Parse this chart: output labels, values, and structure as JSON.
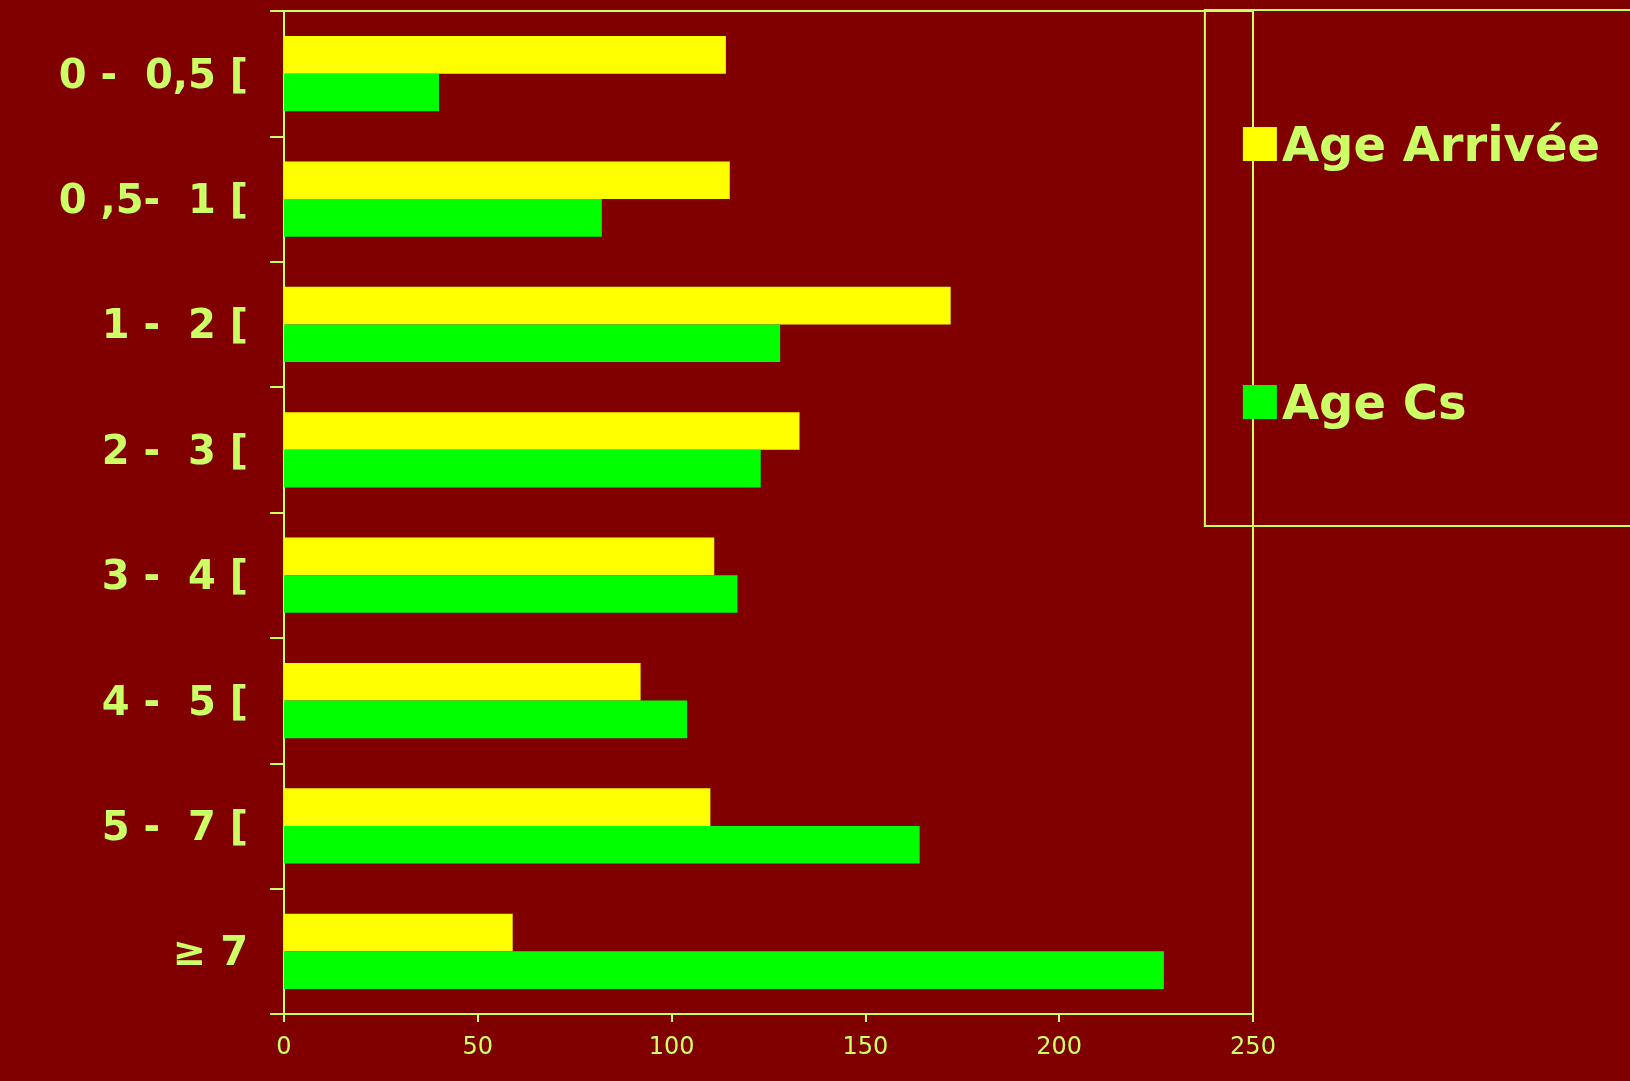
{
  "chart_data": {
    "type": "bar",
    "orientation": "horizontal",
    "categories": [
      "0 -  0,5 [",
      "0 ,5-  1 [",
      "1 -  2 [",
      "2 -  3 [",
      "3 -  4 [",
      "4 -  5 [",
      "5 -  7 [",
      "≥ 7"
    ],
    "series": [
      {
        "name": "Age Arrivée",
        "color": "#ffff00",
        "values": [
          114,
          115,
          172,
          133,
          111,
          92,
          110,
          59
        ]
      },
      {
        "name": "Age Cs",
        "color": "#00ff00",
        "values": [
          40,
          82,
          128,
          123,
          117,
          104,
          164,
          227
        ]
      }
    ],
    "xlim": [
      0,
      250
    ],
    "xticks": [
      0,
      50,
      100,
      150,
      200,
      250
    ],
    "grid": false,
    "legend": "top right"
  }
}
